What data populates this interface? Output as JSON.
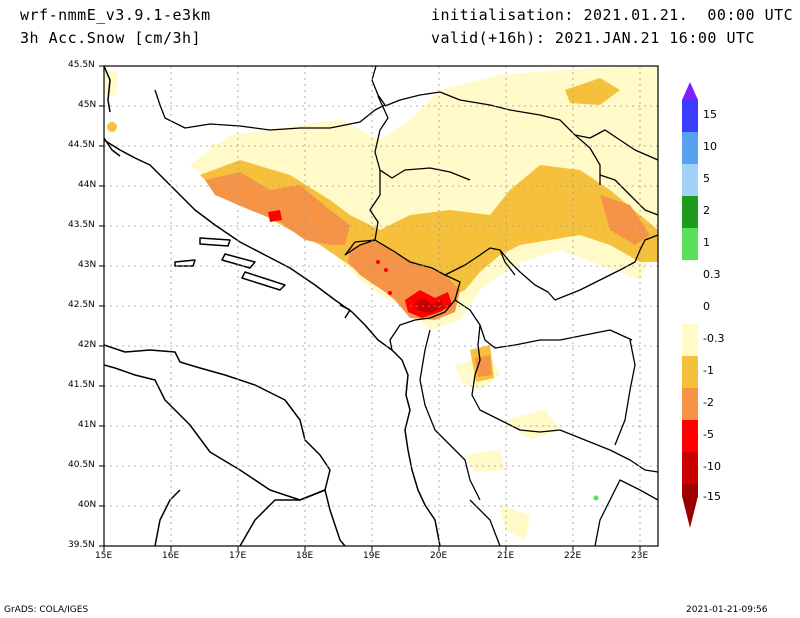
{
  "header": {
    "model": "wrf-nmmE_v3.9.1-e3km",
    "field": "3h Acc.Snow [cm/3h]",
    "init": "initialisation: 2021.01.21.  00:00 UTC",
    "valid": "valid(+16h): 2021.JAN.21 16:00 UTC"
  },
  "footer": {
    "credit": "GrADS: COLA/IGES",
    "timestamp": "2021-01-21-09:56"
  },
  "map": {
    "lat_labels": [
      "45.5N",
      "45N",
      "44.5N",
      "44N",
      "43.5N",
      "43N",
      "42.5N",
      "42N",
      "41.5N",
      "41N",
      "40.5N",
      "40N",
      "39.5N"
    ],
    "lon_labels": [
      "15E",
      "16E",
      "17E",
      "18E",
      "19E",
      "20E",
      "21E",
      "22E",
      "23E"
    ]
  },
  "colorbar": {
    "labels": [
      "15",
      "10",
      "5",
      "2",
      "1",
      "0.3",
      "0",
      "-0.3",
      "-1",
      "-2",
      "-5",
      "-10",
      "-15"
    ],
    "colors": [
      "#7b1fff",
      "#3c3cff",
      "#5aa0f0",
      "#a0d2fa",
      "#1e9b1e",
      "#5ae05a",
      "#ffffff",
      "#fffac8",
      "#f5c03c",
      "#f59446",
      "#ff0000",
      "#c80000",
      "#a00000",
      "#9a0000"
    ]
  },
  "snow_colors": {
    "light": "#fffac8",
    "moderate": "#f5c03c",
    "heavy": "#f59446",
    "very_heavy": "#ff0000",
    "extreme": "#c80000"
  }
}
